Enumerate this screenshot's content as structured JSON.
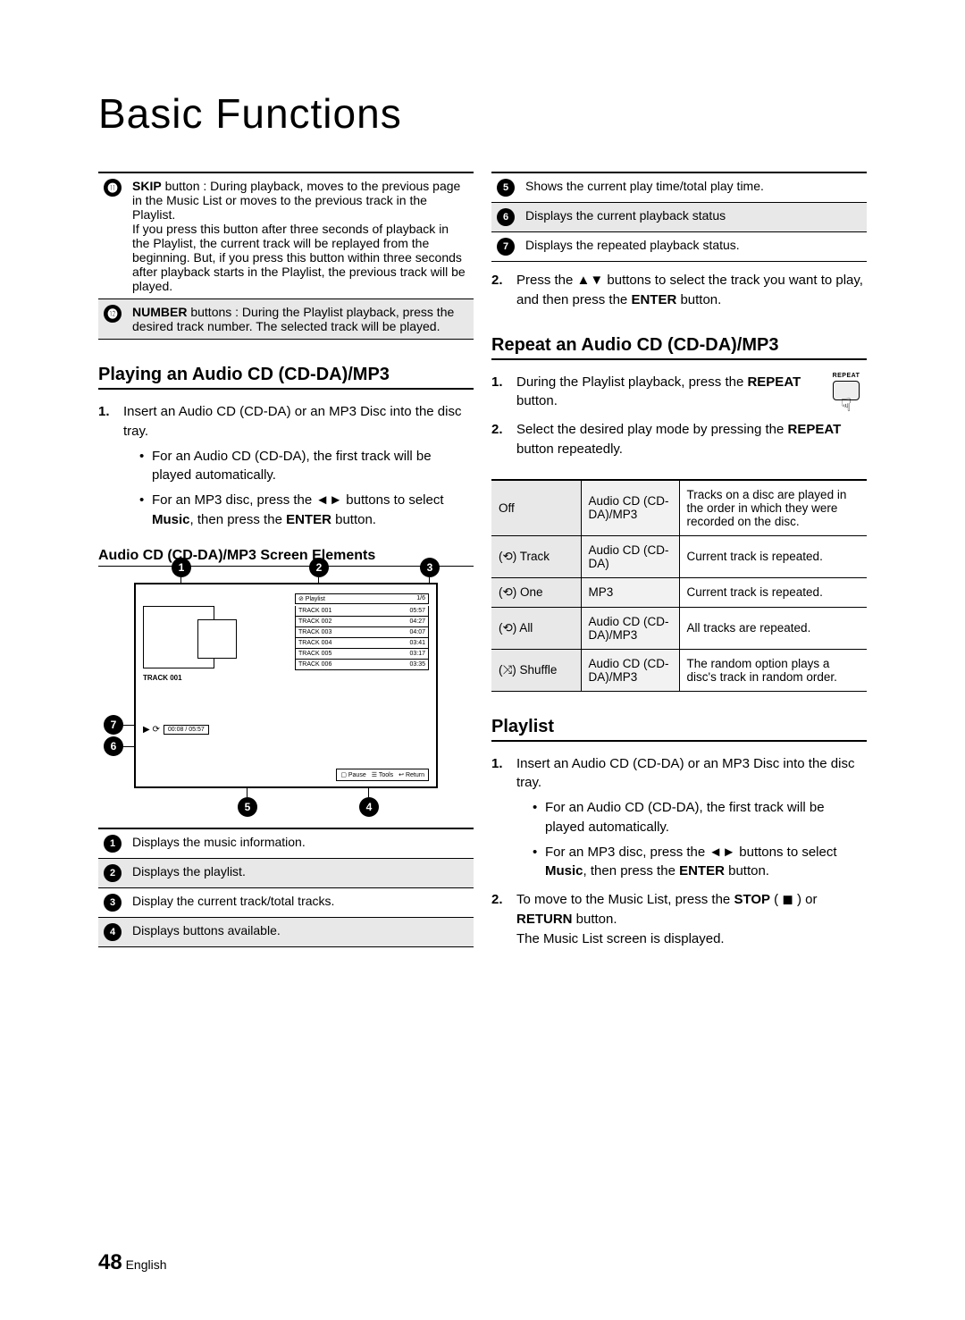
{
  "title": "Basic Functions",
  "page_number": "48",
  "page_lang": "English",
  "left_info_rows": [
    {
      "n": "⓫",
      "html": "<span class='b'>SKIP</span> button : During playback, moves to the previous page in the Music List or moves to the previous track in the Playlist.<br>If you press this button after three seconds of playback in the Playlist, the current track will be replayed from the beginning. But, if you press this button within three seconds after playback starts in the Playlist, the previous track will be played."
    },
    {
      "n": "⓬",
      "html": "<span class='b'>NUMBER</span> buttons : During the Playlist playback, press the desired track number. The selected track will be played."
    }
  ],
  "section_playing": "Playing an Audio CD (CD-DA)/MP3",
  "playing_steps": [
    {
      "text": "Insert an Audio CD (CD-DA) or an MP3 Disc into the disc tray.",
      "bullets": [
        "For an Audio CD (CD-DA), the first track will be played automatically.",
        "For an MP3 disc, press the <span class='arrow'>◄►</span> buttons to select <span class='b'>Music</span>, then press the <span class='b'>ENTER</span> button."
      ]
    }
  ],
  "screen_sub": "Audio CD (CD-DA)/MP3 Screen Elements",
  "screen": {
    "playlist_label": "⊘ Playlist",
    "counter": "1/6",
    "current_track": "TRACK 001",
    "time": "00:08 / 05:57",
    "status_icons": "▶   ⟳",
    "rows": [
      {
        "t": "TRACK 001",
        "d": "05:57"
      },
      {
        "t": "TRACK 002",
        "d": "04:27"
      },
      {
        "t": "TRACK 003",
        "d": "04:07"
      },
      {
        "t": "TRACK 004",
        "d": "03:41"
      },
      {
        "t": "TRACK 005",
        "d": "03:17"
      },
      {
        "t": "TRACK 006",
        "d": "03:35"
      }
    ],
    "bottom": [
      "▢ Pause",
      "☰ Tools",
      "↩ Return"
    ]
  },
  "elements_table": [
    {
      "n": "❶",
      "t": "Displays the music information."
    },
    {
      "n": "❷",
      "t": "Displays the playlist."
    },
    {
      "n": "❸",
      "t": "Display the current track/total tracks."
    },
    {
      "n": "❹",
      "t": "Displays buttons available."
    }
  ],
  "right_top_table": [
    {
      "n": "❺",
      "t": "Shows the current play time/total play time."
    },
    {
      "n": "❻",
      "t": "Displays the current playback status"
    },
    {
      "n": "❼",
      "t": "Displays the repeated playback status."
    }
  ],
  "press_step": "Press the <span class='arrow'>▲▼</span> buttons to select the track you want to play, and then press the <span class='b'>ENTER</span> button.",
  "section_repeat": "Repeat an Audio CD (CD-DA)/MP3",
  "repeat_btn_label": "REPEAT",
  "repeat_steps": [
    "During the Playlist playback, press the <span class='b'>REPEAT</span> button.",
    "Select the desired play mode by pressing the <span class='b'>REPEAT</span> button repeatedly."
  ],
  "modes": [
    {
      "m": "Off",
      "s": "Audio CD (CD-DA)/MP3",
      "d": "Tracks on a disc are played in the order in which they were recorded on the disc."
    },
    {
      "m": "(⟲) Track",
      "s": "Audio CD (CD-DA)",
      "d": "Current track is repeated."
    },
    {
      "m": "(⟲) One",
      "s": "MP3",
      "d": "Current track is repeated."
    },
    {
      "m": "(⟲) All",
      "s": "Audio CD (CD-DA)/MP3",
      "d": "All tracks are repeated."
    },
    {
      "m": "(⤨) Shuffle",
      "s": "Audio CD (CD-DA)/MP3",
      "d": "The random option plays a disc's track in random order."
    }
  ],
  "section_playlist": "Playlist",
  "playlist_steps": [
    {
      "text": "Insert an Audio CD (CD-DA) or an MP3 Disc into the disc tray.",
      "bullets": [
        "For an Audio CD (CD-DA), the first track will be played automatically.",
        "For an MP3 disc, press the <span class='arrow'>◄►</span> buttons to select <span class='b'>Music</span>, then press the <span class='b'>ENTER</span> button."
      ]
    },
    {
      "text": "To move to the Music List, press the <span class='b'>STOP</span> ( ◼ ) or <span class='b'>RETURN</span> button.<br>The Music List screen is displayed."
    }
  ]
}
